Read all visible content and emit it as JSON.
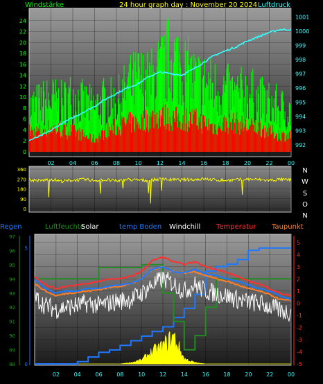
{
  "header": {
    "left_label": "Windstärke",
    "title": "24 hour graph day : November 20 2024",
    "right_label": "Luftdruck"
  },
  "colors": {
    "wind_gust": "#00ff00",
    "wind_avg": "#ff0000",
    "pressure": "#33ffff",
    "direction": "#ffff00",
    "humidity": "#228b22",
    "solar": "#ffff00",
    "soil_temp": "#1e78ff",
    "windchill": "#ffffff",
    "temperature": "#ff3030",
    "dewpoint": "#ff7f27",
    "rain": "#1e78ff"
  },
  "x_ticks": [
    "02",
    "04",
    "06",
    "08",
    "10",
    "12",
    "14",
    "16",
    "18",
    "20",
    "22",
    "00"
  ],
  "chart_data": [
    {
      "type": "line",
      "title": "24 hour graph day : November 20 2024",
      "y_left_label": "Windstärke",
      "y_right_label": "Luftdruck",
      "ylim_left": [
        0,
        26
      ],
      "ylim_right": [
        991.5,
        1001.5
      ],
      "y_left_ticks": [
        "0",
        "2",
        "4",
        "6",
        "8",
        "10",
        "12",
        "14",
        "16",
        "18",
        "20",
        "22",
        "24"
      ],
      "y_right_ticks": [
        "992",
        "993",
        "994",
        "995",
        "996",
        "997",
        "998",
        "999",
        "1000",
        "1001"
      ],
      "x_hours": [
        0,
        1,
        2,
        3,
        4,
        5,
        6,
        7,
        8,
        9,
        10,
        11,
        12,
        13,
        14,
        15,
        16,
        17,
        18,
        19,
        20,
        21,
        22,
        23,
        24
      ],
      "series": [
        {
          "name": "Windstärke",
          "values": [
            11,
            12,
            13,
            12,
            14,
            12,
            11,
            13,
            12,
            16,
            18,
            17,
            20,
            24,
            21,
            18,
            17,
            16,
            15,
            14,
            15,
            13,
            12,
            11,
            10
          ]
        },
        {
          "name": "Windstärke Mittel",
          "values": [
            5,
            5,
            6,
            5,
            5,
            4,
            3,
            5,
            6,
            7,
            7,
            8,
            9,
            8,
            8,
            8,
            7,
            6,
            7,
            7,
            6,
            6,
            5,
            4,
            4
          ]
        },
        {
          "name": "Luftdruck",
          "values": [
            992.3,
            992.6,
            993.0,
            993.5,
            993.9,
            994.3,
            994.7,
            995.2,
            995.6,
            996.0,
            996.3,
            996.8,
            997.1,
            997.0,
            996.9,
            997.3,
            997.8,
            998.3,
            998.6,
            998.9,
            999.3,
            999.6,
            999.9,
            1000.1,
            1000.1
          ]
        }
      ]
    },
    {
      "type": "scatter",
      "y_ticks": [
        "0",
        "90",
        "180",
        "270",
        "360"
      ],
      "ylim": [
        0,
        360
      ],
      "right_labels": [
        "N",
        "W",
        "S",
        "O",
        "N"
      ],
      "x_hours": [
        0,
        1,
        2,
        3,
        4,
        5,
        6,
        7,
        8,
        9,
        10,
        11,
        12,
        13,
        14,
        15,
        16,
        17,
        18,
        19,
        20,
        21,
        22,
        23,
        24
      ],
      "values": [
        262,
        255,
        268,
        250,
        260,
        265,
        258,
        262,
        252,
        266,
        260,
        258,
        270,
        264,
        262,
        266,
        270,
        262,
        258,
        262,
        268,
        264,
        258,
        266,
        260
      ]
    },
    {
      "type": "line",
      "legend": [
        "Regen",
        "Luftfeuchte",
        "Solar",
        "temp Boden",
        "Windchill",
        "Temperatur",
        "Taupunkt"
      ],
      "y_humidity_ticks": [
        "88",
        "89",
        "90",
        "91",
        "92",
        "93",
        "94",
        "95",
        "96",
        "97"
      ],
      "ylim_humidity": [
        88,
        97
      ],
      "y_rain_ticks": [
        "0",
        "5"
      ],
      "ylim_rain": [
        0,
        5.5
      ],
      "y_temp_ticks": [
        "-5",
        "-4",
        "-3",
        "-2",
        "-1",
        "0",
        "1",
        "2",
        "3",
        "4",
        "5"
      ],
      "ylim_temp": [
        -5,
        5.5
      ],
      "x_hours": [
        0,
        1,
        2,
        3,
        4,
        5,
        6,
        7,
        8,
        9,
        10,
        11,
        12,
        13,
        14,
        15,
        16,
        17,
        18,
        19,
        20,
        21,
        22,
        23,
        24
      ],
      "series": [
        {
          "name": "Regen",
          "values": [
            0,
            0,
            0,
            0,
            0.1,
            0.3,
            0.5,
            0.6,
            0.8,
            1.0,
            1.2,
            1.4,
            1.6,
            2.0,
            2.4,
            3.0,
            4.0,
            4.2,
            4.3,
            4.5,
            4.9,
            5.0,
            5.0,
            5.0,
            5.0
          ]
        },
        {
          "name": "Luftfeuchte",
          "values": [
            94,
            94,
            94,
            94,
            94,
            94,
            94.8,
            94.8,
            94.8,
            94.8,
            95,
            95,
            93,
            91,
            89,
            90,
            92,
            94,
            94,
            94,
            94,
            94,
            94,
            94,
            94
          ]
        },
        {
          "name": "Solar",
          "values": [
            0,
            0,
            0,
            0,
            0,
            0,
            0,
            0,
            0,
            0.1,
            0.3,
            1.0,
            1.4,
            2.2,
            0.4,
            0.1,
            0,
            0,
            0,
            0,
            0,
            0,
            0,
            0,
            0
          ]
        },
        {
          "name": "temp Boden",
          "values": [
            2.0,
            1.2,
            0.8,
            1.0,
            1.0,
            1.2,
            1.2,
            1.4,
            1.5,
            1.6,
            2.0,
            2.8,
            3.0,
            2.6,
            2.5,
            2.8,
            2.4,
            2.3,
            2.0,
            1.8,
            1.5,
            1.2,
            1.0,
            0.6,
            0.3
          ]
        },
        {
          "name": "Windchill",
          "values": [
            0.5,
            -0.2,
            -0.5,
            -0.3,
            -0.2,
            0,
            -0.2,
            0,
            0.2,
            0.3,
            0.8,
            1.5,
            2.0,
            1.6,
            1.0,
            1.5,
            1.0,
            0.8,
            0.6,
            0.3,
            0.1,
            0,
            -0.3,
            -0.6,
            -0.8
          ]
        },
        {
          "name": "Temperatur",
          "values": [
            2.2,
            1.5,
            1.2,
            1.4,
            1.5,
            1.6,
            1.8,
            2.0,
            2.0,
            2.2,
            2.6,
            3.5,
            3.8,
            3.4,
            3.2,
            3.4,
            3.0,
            2.8,
            2.5,
            2.2,
            1.8,
            1.6,
            1.2,
            0.8,
            0.6
          ]
        },
        {
          "name": "Taupunkt",
          "values": [
            1.6,
            1.0,
            0.6,
            0.8,
            0.9,
            1.0,
            1.1,
            1.3,
            1.4,
            1.6,
            2.0,
            2.8,
            3.0,
            2.6,
            2.5,
            2.6,
            2.3,
            2.0,
            1.8,
            1.5,
            1.2,
            1.0,
            0.7,
            0.3,
            0.2
          ]
        }
      ]
    }
  ]
}
